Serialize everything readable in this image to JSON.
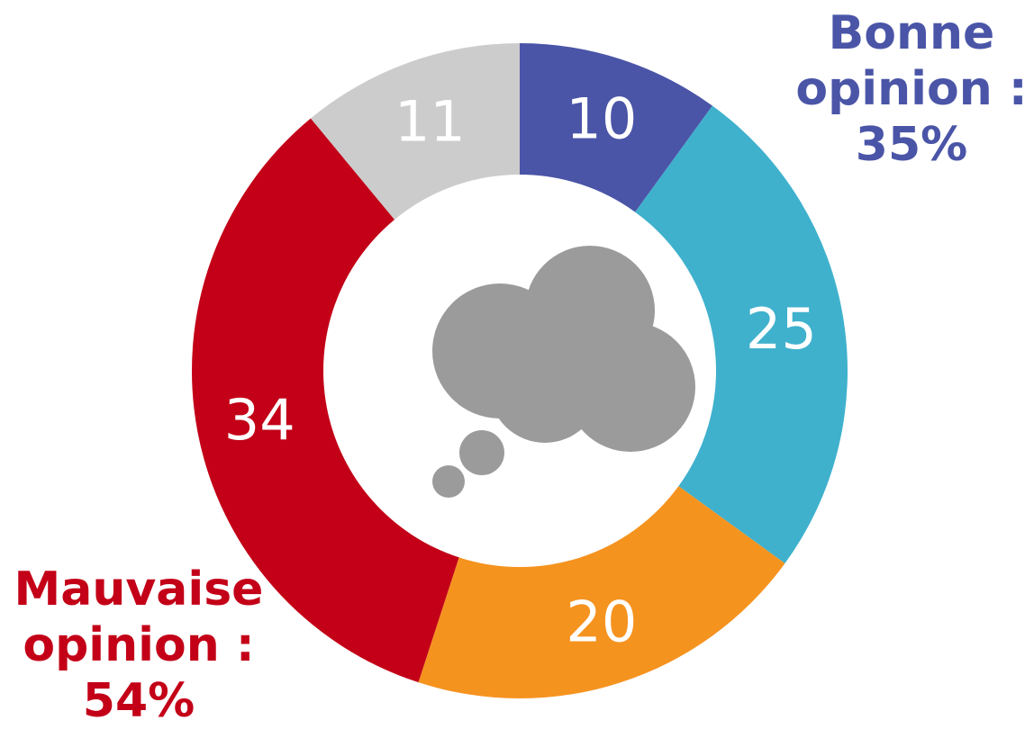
{
  "chart_data": {
    "type": "pie",
    "variant": "donut",
    "categories": [
      "",
      "",
      "",
      "",
      ""
    ],
    "values": [
      10,
      25,
      20,
      34,
      11
    ],
    "colors": [
      "#4a55a7",
      "#3fb1cd",
      "#f5931f",
      "#c30017",
      "#cccccc"
    ],
    "center_icon": "thought-cloud-icon",
    "annotations": {
      "good": {
        "lines": [
          "Bonne",
          "opinion :",
          "35%"
        ],
        "color": "#4a55a7"
      },
      "bad": {
        "lines": [
          "Mauvaise",
          "opinion :",
          "54%"
        ],
        "color": "#c30017"
      }
    }
  }
}
